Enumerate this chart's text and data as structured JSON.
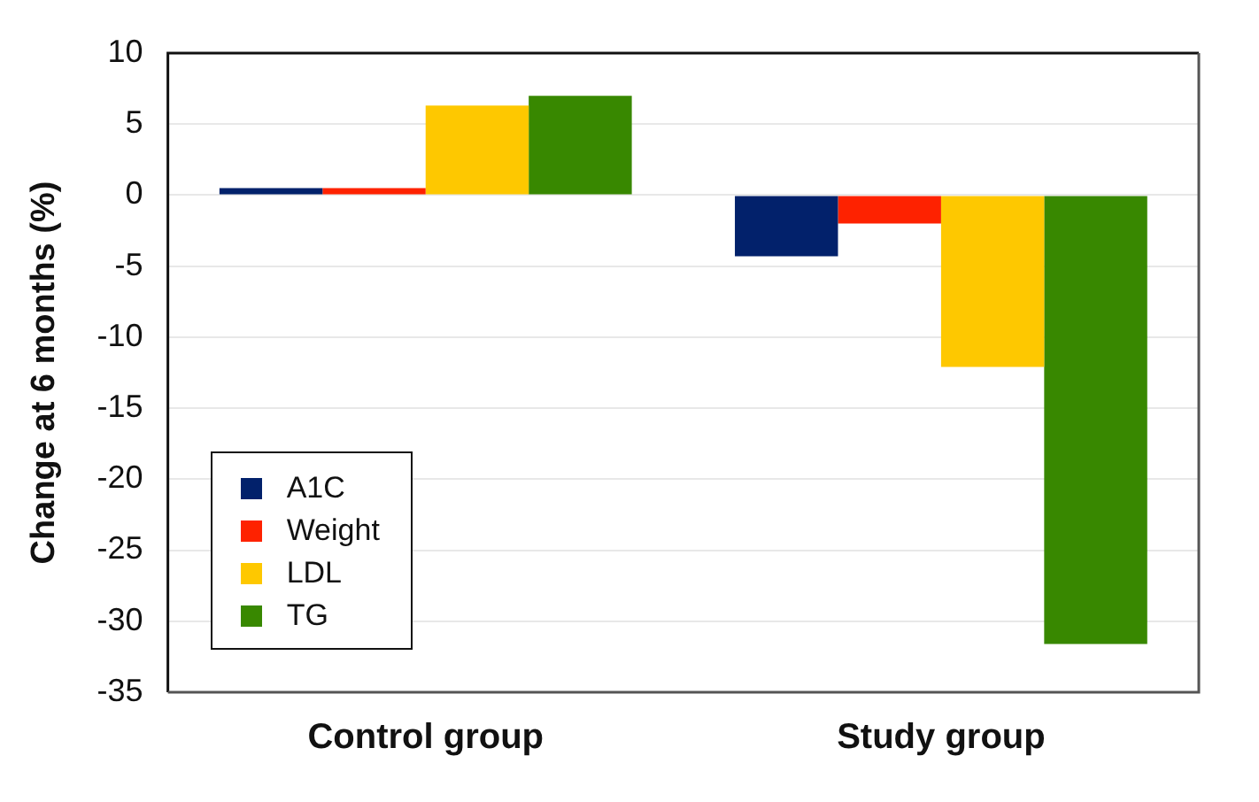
{
  "chart_data": {
    "type": "bar",
    "ylabel": "Change at 6 months (%)",
    "categories": [
      "Control group",
      "Study group"
    ],
    "series": [
      {
        "name": "A1C",
        "color": "#02216b",
        "values": [
          0.5,
          -4.3
        ]
      },
      {
        "name": "Weight",
        "color": "#fe2200",
        "values": [
          0.5,
          -2.0
        ]
      },
      {
        "name": "LDL",
        "color": "#fec800",
        "values": [
          6.3,
          -12.1
        ]
      },
      {
        "name": "TG",
        "color": "#388800",
        "values": [
          7.0,
          -31.6
        ]
      }
    ],
    "ylim": [
      -35,
      10
    ],
    "yticks": [
      -35,
      -30,
      -25,
      -20,
      -15,
      -10,
      -5,
      0,
      5,
      10
    ],
    "grid": "y",
    "legend": "bottom left"
  }
}
